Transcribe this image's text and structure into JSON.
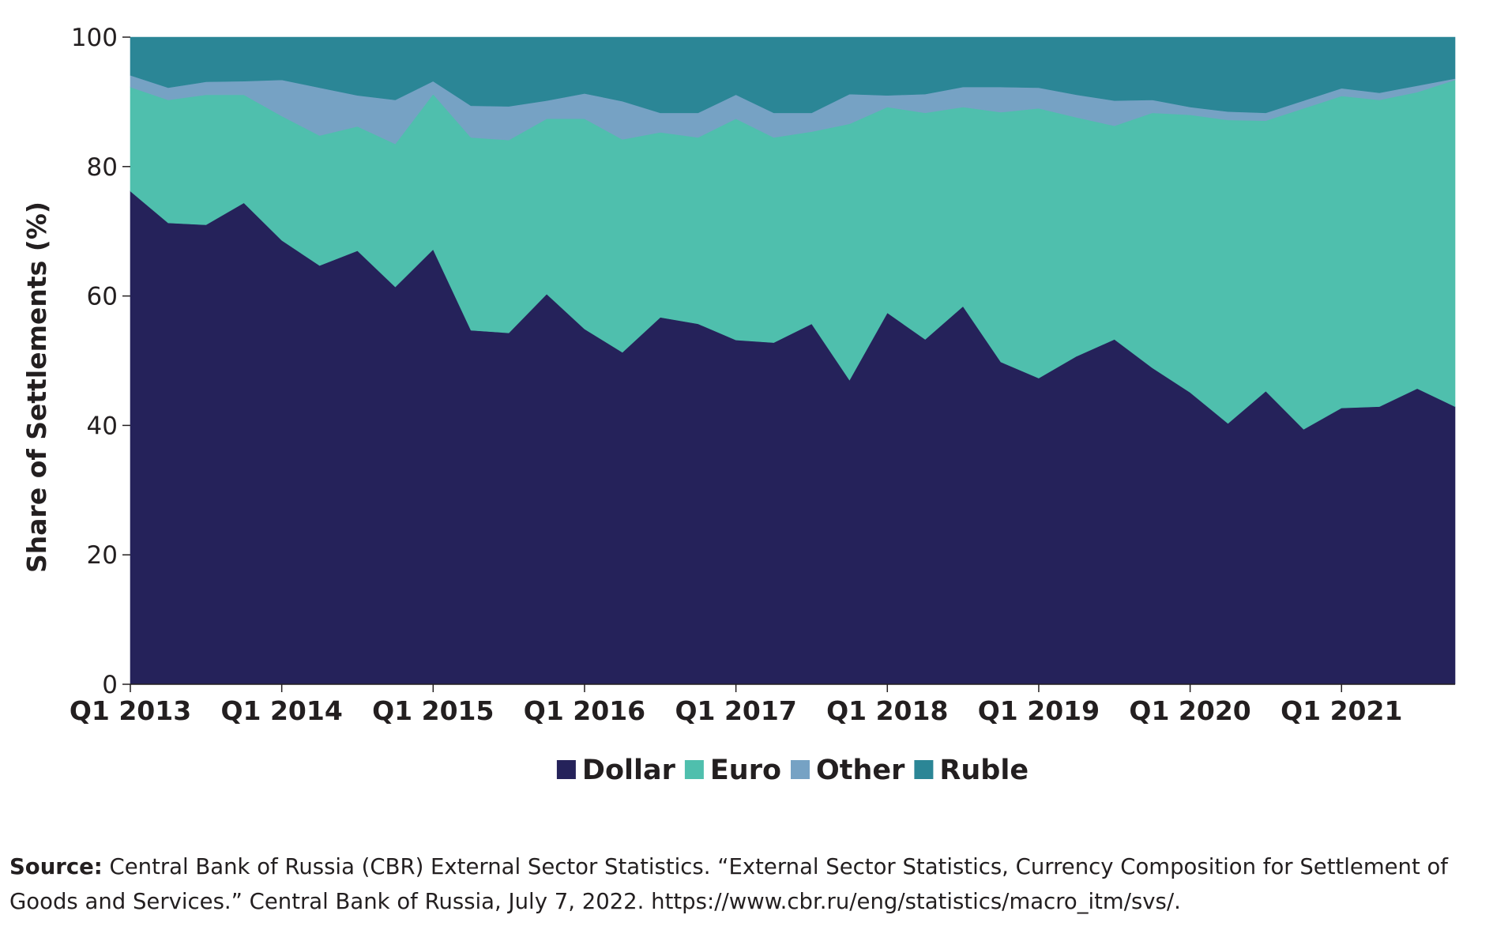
{
  "chart_data": {
    "type": "area",
    "stacked": true,
    "title": "",
    "xlabel": "",
    "ylabel": "Share of Settlements (%)",
    "ylim": [
      0,
      100
    ],
    "yticks": [
      "0",
      "20",
      "40",
      "60",
      "80",
      "100"
    ],
    "grid": false,
    "legend_position": "bottom-center",
    "x": [
      "Q1 2013",
      "Q2 2013",
      "Q3 2013",
      "Q4 2013",
      "Q1 2014",
      "Q2 2014",
      "Q3 2014",
      "Q4 2014",
      "Q1 2015",
      "Q2 2015",
      "Q3 2015",
      "Q4 2015",
      "Q1 2016",
      "Q2 2016",
      "Q3 2016",
      "Q4 2016",
      "Q1 2017",
      "Q2 2017",
      "Q3 2017",
      "Q4 2017",
      "Q1 2018",
      "Q2 2018",
      "Q3 2018",
      "Q4 2018",
      "Q1 2019",
      "Q2 2019",
      "Q3 2019",
      "Q4 2019",
      "Q1 2020",
      "Q2 2020",
      "Q3 2020",
      "Q4 2020",
      "Q1 2021",
      "Q2 2021",
      "Q3 2021",
      "Q4 2021"
    ],
    "x_tick_labels": [
      "Q1 2013",
      "Q1 2014",
      "Q1 2015",
      "Q1 2016",
      "Q1 2017",
      "Q1 2018",
      "Q1 2019",
      "Q1 2020",
      "Q1 2021"
    ],
    "series": [
      {
        "name": "Dollar",
        "color": "#25225a",
        "values": [
          76.2,
          71.3,
          71.0,
          74.4,
          68.6,
          64.7,
          67.0,
          61.4,
          67.2,
          54.7,
          54.3,
          60.3,
          54.9,
          51.3,
          56.7,
          55.7,
          53.2,
          52.8,
          55.7,
          47.0,
          57.4,
          53.3,
          58.4,
          49.8,
          47.3,
          50.7,
          53.3,
          48.9,
          45.1,
          40.3,
          45.3,
          39.4,
          42.7,
          42.9,
          45.7,
          42.9
        ]
      },
      {
        "name": "Euro",
        "color": "#4fbfad",
        "values": [
          16.1,
          19.0,
          20.1,
          16.7,
          19.2,
          20.1,
          19.2,
          22.1,
          24.0,
          29.8,
          29.8,
          27.1,
          32.5,
          32.9,
          28.6,
          28.8,
          34.2,
          31.7,
          29.7,
          39.6,
          31.8,
          35.0,
          30.8,
          38.6,
          41.7,
          36.9,
          33.0,
          39.4,
          42.9,
          46.9,
          41.8,
          49.6,
          48.2,
          47.4,
          45.8,
          50.5
        ]
      },
      {
        "name": "Other",
        "color": "#76a2c4",
        "values": [
          1.8,
          1.9,
          2.0,
          2.1,
          5.6,
          7.4,
          4.8,
          6.8,
          2.0,
          4.9,
          5.2,
          2.8,
          3.9,
          5.9,
          3.0,
          3.8,
          3.7,
          3.8,
          2.9,
          4.6,
          1.8,
          2.9,
          3.1,
          3.9,
          3.2,
          3.5,
          3.9,
          2.0,
          1.2,
          1.3,
          1.2,
          1.2,
          1.2,
          1.1,
          1.0,
          0.2
        ]
      },
      {
        "name": "Ruble",
        "color": "#2b8696",
        "values": [
          5.9,
          7.8,
          6.9,
          6.8,
          6.6,
          7.8,
          9.0,
          9.7,
          6.8,
          10.6,
          10.7,
          9.8,
          8.7,
          9.9,
          11.7,
          11.7,
          8.9,
          11.7,
          11.7,
          8.8,
          9.0,
          8.8,
          7.7,
          7.7,
          7.8,
          8.9,
          9.8,
          9.7,
          10.8,
          11.5,
          11.7,
          9.8,
          7.9,
          8.6,
          7.5,
          6.4
        ]
      }
    ]
  },
  "source": {
    "label": "Source:",
    "text": " Central Bank of Russia (CBR) External Sector Statistics. “External Sector Statistics, Currency Composition for Settlement of Goods and Services.” Central Bank of Russia, July 7, 2022. https://www.cbr.ru/eng/statistics/macro_itm/svs/."
  }
}
